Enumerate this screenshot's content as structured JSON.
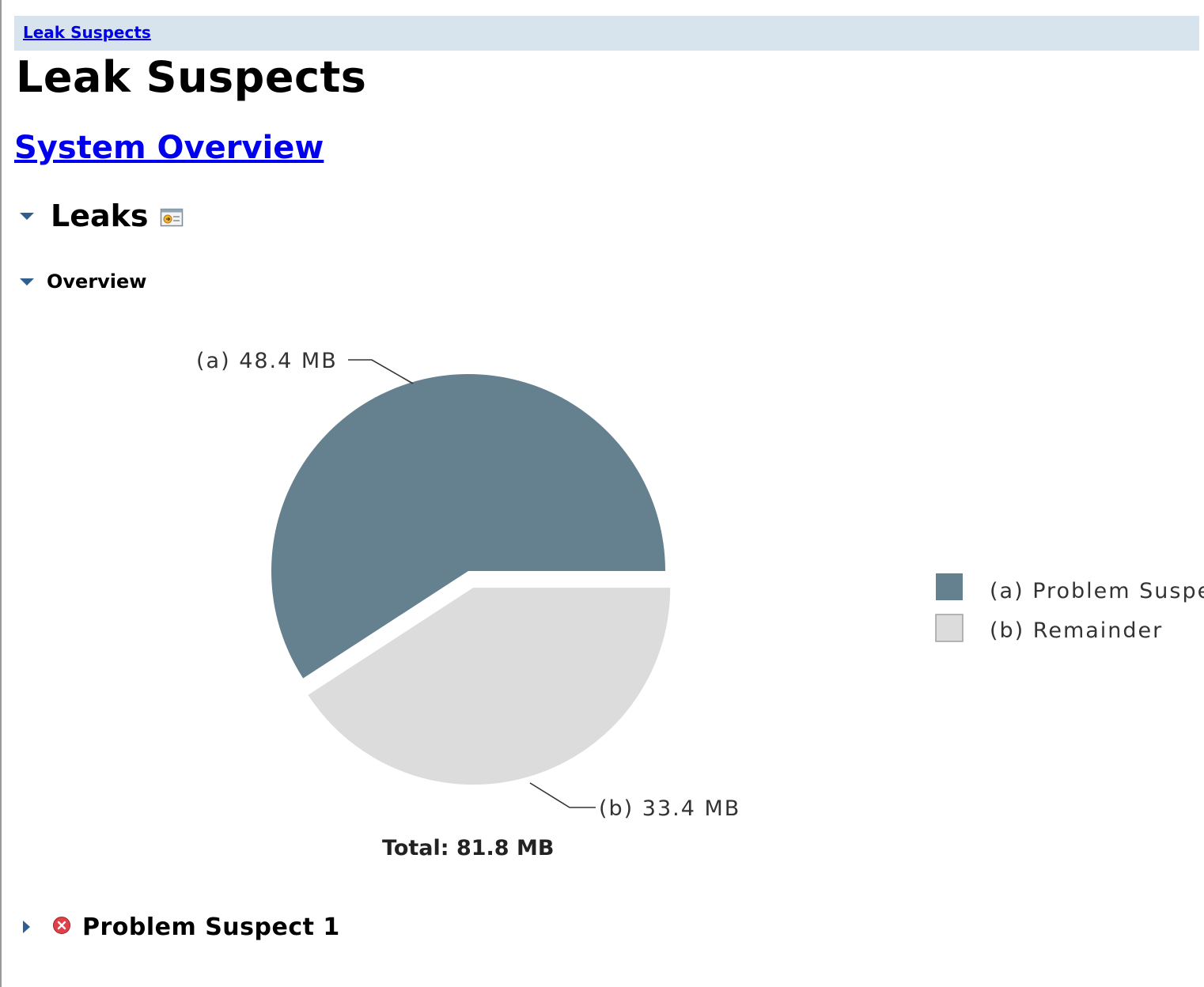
{
  "breadcrumb": {
    "label": "Leak Suspects"
  },
  "page": {
    "title": "Leak Suspects"
  },
  "system_overview_link": "System Overview",
  "leaks_section": {
    "title": "Leaks",
    "details_icon": "details-window-icon"
  },
  "overview_section": {
    "title": "Overview"
  },
  "chart_data": {
    "type": "pie",
    "series": [
      {
        "key": "(a)",
        "name": "Problem Suspe",
        "value": 48.4,
        "unit": "MB",
        "label": "(a)  48.4 MB",
        "color": "#65808f"
      },
      {
        "key": "(b)",
        "name": "Remainder",
        "value": 33.4,
        "unit": "MB",
        "label": "(b)  33.4 MB",
        "color": "#dcdcdc"
      }
    ],
    "total_label": "Total: 81.8 MB",
    "legend": [
      {
        "text": "(a)  Problem Suspe",
        "color": "#65808f"
      },
      {
        "text": "(b)  Remainder",
        "color": "#dcdcdc"
      }
    ],
    "legend_position": "right",
    "exploded_slice": "(b)"
  },
  "suspects": [
    {
      "title": "Problem Suspect 1",
      "status_icon": "error-icon",
      "expanded": false
    }
  ],
  "colors": {
    "link": "#0000ee",
    "breadcrumb_bg": "#d8e4ed",
    "twisty": "#2e5f8e",
    "error": "#e0404a"
  }
}
